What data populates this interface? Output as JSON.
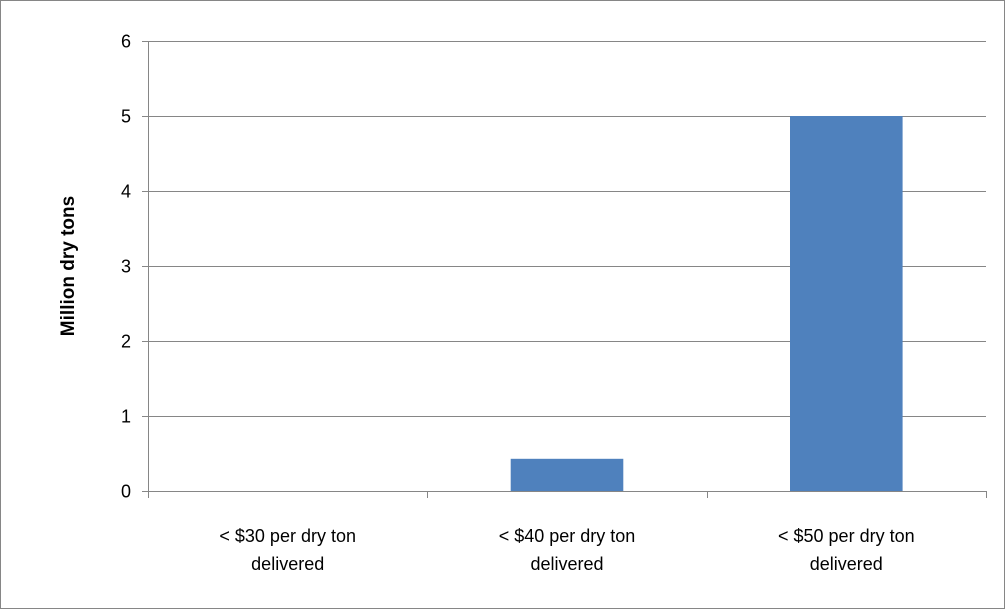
{
  "chart_data": {
    "type": "bar",
    "title": "",
    "xlabel": "",
    "ylabel": "Million dry tons",
    "categories": [
      [
        "< $30 per dry ton",
        "delivered"
      ],
      [
        "< $40 per dry ton",
        "delivered"
      ],
      [
        "< $50 per dry ton",
        "delivered"
      ]
    ],
    "series": [
      {
        "values": [
          0,
          0.43,
          5.0
        ]
      }
    ],
    "ylim": [
      0,
      6
    ],
    "yticks": [
      0,
      1,
      2,
      3,
      4,
      5,
      6
    ],
    "grid": true,
    "legend": "none",
    "bar_color": "#4F81BD",
    "grid_color": "#868686"
  }
}
